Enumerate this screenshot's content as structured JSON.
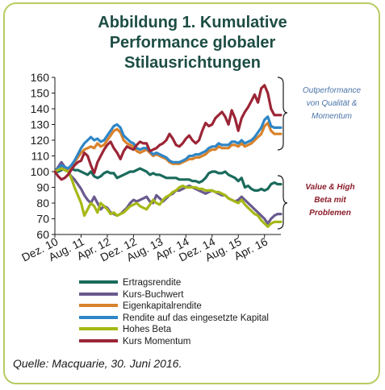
{
  "title_lines": [
    "Abbildung 1. Kumulative",
    "Performance globaler",
    "Stilausrichtungen"
  ],
  "source": "Quelle: Macquarie, 30. Juni 2016.",
  "annotations": {
    "top": [
      "Outperformance",
      "von Qualität &",
      "Momentum"
    ],
    "bottom": [
      "Value & High",
      "Beta mit",
      "Problemen"
    ]
  },
  "colors": {
    "Ertragsrendite": "#1a6b5c",
    "Kurs-Buchwert": "#6a5a8e",
    "Eigenkapitalrendite": "#d9822b",
    "Rendite auf das eingesetzte Kapital": "#2f86c6",
    "Hohes Beta": "#a6b817",
    "Kurs Momentum": "#9b2536"
  },
  "chart_data": {
    "type": "line",
    "ylim": [
      60,
      160
    ],
    "yticks": [
      60,
      70,
      80,
      90,
      100,
      110,
      120,
      130,
      140,
      150,
      160
    ],
    "x_tick_labels": [
      "Dez. 10",
      "Aug. 11",
      "Apr. 12",
      "Dez. 12",
      "Aug. 13",
      "Apr. 14",
      "Dez. 14",
      "Aug. 15",
      "Apr. 16"
    ],
    "x_tick_index": [
      0,
      8,
      16,
      24,
      32,
      40,
      48,
      56,
      64
    ],
    "series": [
      {
        "name": "Ertragsrendite",
        "values": [
          100,
          100,
          101,
          102,
          102,
          102,
          101,
          101,
          100,
          99,
          98,
          100,
          97,
          96,
          97,
          99,
          100,
          99,
          99,
          96,
          97,
          98,
          99,
          100,
          100,
          101,
          102,
          101,
          100,
          98,
          99,
          98,
          98,
          97,
          96,
          96,
          96,
          96,
          95,
          95,
          95,
          95,
          94,
          94,
          93,
          94,
          96,
          99,
          100,
          100,
          99,
          99,
          100,
          98,
          97,
          96,
          94,
          96,
          90,
          91,
          89,
          88,
          88,
          89,
          88,
          89,
          92,
          93,
          92,
          92
        ]
      },
      {
        "name": "Kurs-Buchwert",
        "values": [
          100,
          103,
          106,
          103,
          100,
          97,
          95,
          92,
          89,
          85,
          82,
          80,
          84,
          80,
          76,
          78,
          77,
          74,
          73,
          72,
          73,
          75,
          77,
          80,
          82,
          81,
          82,
          83,
          84,
          81,
          80,
          85,
          83,
          81,
          83,
          85,
          86,
          88,
          88,
          89,
          90,
          91,
          90,
          89,
          88,
          87,
          86,
          87,
          88,
          87,
          86,
          85,
          85,
          83,
          82,
          81,
          82,
          84,
          82,
          80,
          78,
          76,
          74,
          72,
          70,
          67,
          70,
          72,
          73,
          73
        ]
      },
      {
        "name": "Eigenkapitalrendite",
        "values": [
          100,
          102,
          103,
          102,
          101,
          103,
          106,
          109,
          112,
          114,
          115,
          116,
          115,
          118,
          116,
          117,
          120,
          123,
          126,
          127,
          125,
          120,
          118,
          117,
          116,
          113,
          112,
          113,
          114,
          112,
          110,
          111,
          110,
          109,
          108,
          106,
          105,
          105,
          105,
          106,
          107,
          108,
          108,
          109,
          109,
          110,
          111,
          113,
          114,
          114,
          116,
          115,
          115,
          115,
          117,
          117,
          116,
          118,
          116,
          117,
          118,
          120,
          122,
          124,
          129,
          131,
          126,
          124,
          124,
          124
        ]
      },
      {
        "name": "Rendite auf das eingesetzte Kapital",
        "values": [
          100,
          102,
          104,
          103,
          102,
          104,
          107,
          111,
          115,
          118,
          120,
          122,
          120,
          121,
          119,
          120,
          123,
          126,
          129,
          130,
          128,
          123,
          121,
          119,
          118,
          115,
          114,
          115,
          115,
          113,
          111,
          112,
          111,
          110,
          109,
          107,
          106,
          106,
          106,
          107,
          108,
          110,
          110,
          111,
          111,
          112,
          113,
          115,
          116,
          116,
          118,
          117,
          117,
          117,
          119,
          119,
          118,
          120,
          118,
          119,
          120,
          122,
          125,
          128,
          133,
          135,
          129,
          128,
          128,
          128
        ]
      },
      {
        "name": "Hohes Beta",
        "values": [
          100,
          101,
          102,
          101,
          100,
          96,
          90,
          85,
          80,
          72,
          76,
          80,
          78,
          74,
          80,
          78,
          76,
          73,
          74,
          72,
          73,
          74,
          76,
          78,
          79,
          80,
          78,
          77,
          76,
          79,
          82,
          80,
          79,
          82,
          84,
          85,
          87,
          88,
          90,
          91,
          90,
          90,
          90,
          90,
          89,
          89,
          88,
          88,
          88,
          87,
          87,
          86,
          85,
          83,
          82,
          81,
          80,
          82,
          79,
          77,
          75,
          73,
          72,
          69,
          67,
          65,
          67,
          68,
          68,
          68
        ]
      },
      {
        "name": "Kurs Momentum",
        "values": [
          100,
          97,
          95,
          96,
          98,
          101,
          104,
          106,
          107,
          112,
          110,
          104,
          99,
          106,
          110,
          114,
          117,
          119,
          115,
          112,
          108,
          113,
          116,
          115,
          114,
          117,
          119,
          118,
          118,
          113,
          114,
          115,
          117,
          118,
          120,
          124,
          121,
          117,
          116,
          118,
          121,
          123,
          120,
          118,
          120,
          126,
          131,
          129,
          130,
          134,
          136,
          138,
          135,
          130,
          139,
          134,
          126,
          134,
          138,
          141,
          145,
          149,
          144,
          153,
          155,
          150,
          140,
          136,
          136,
          136
        ]
      }
    ]
  }
}
